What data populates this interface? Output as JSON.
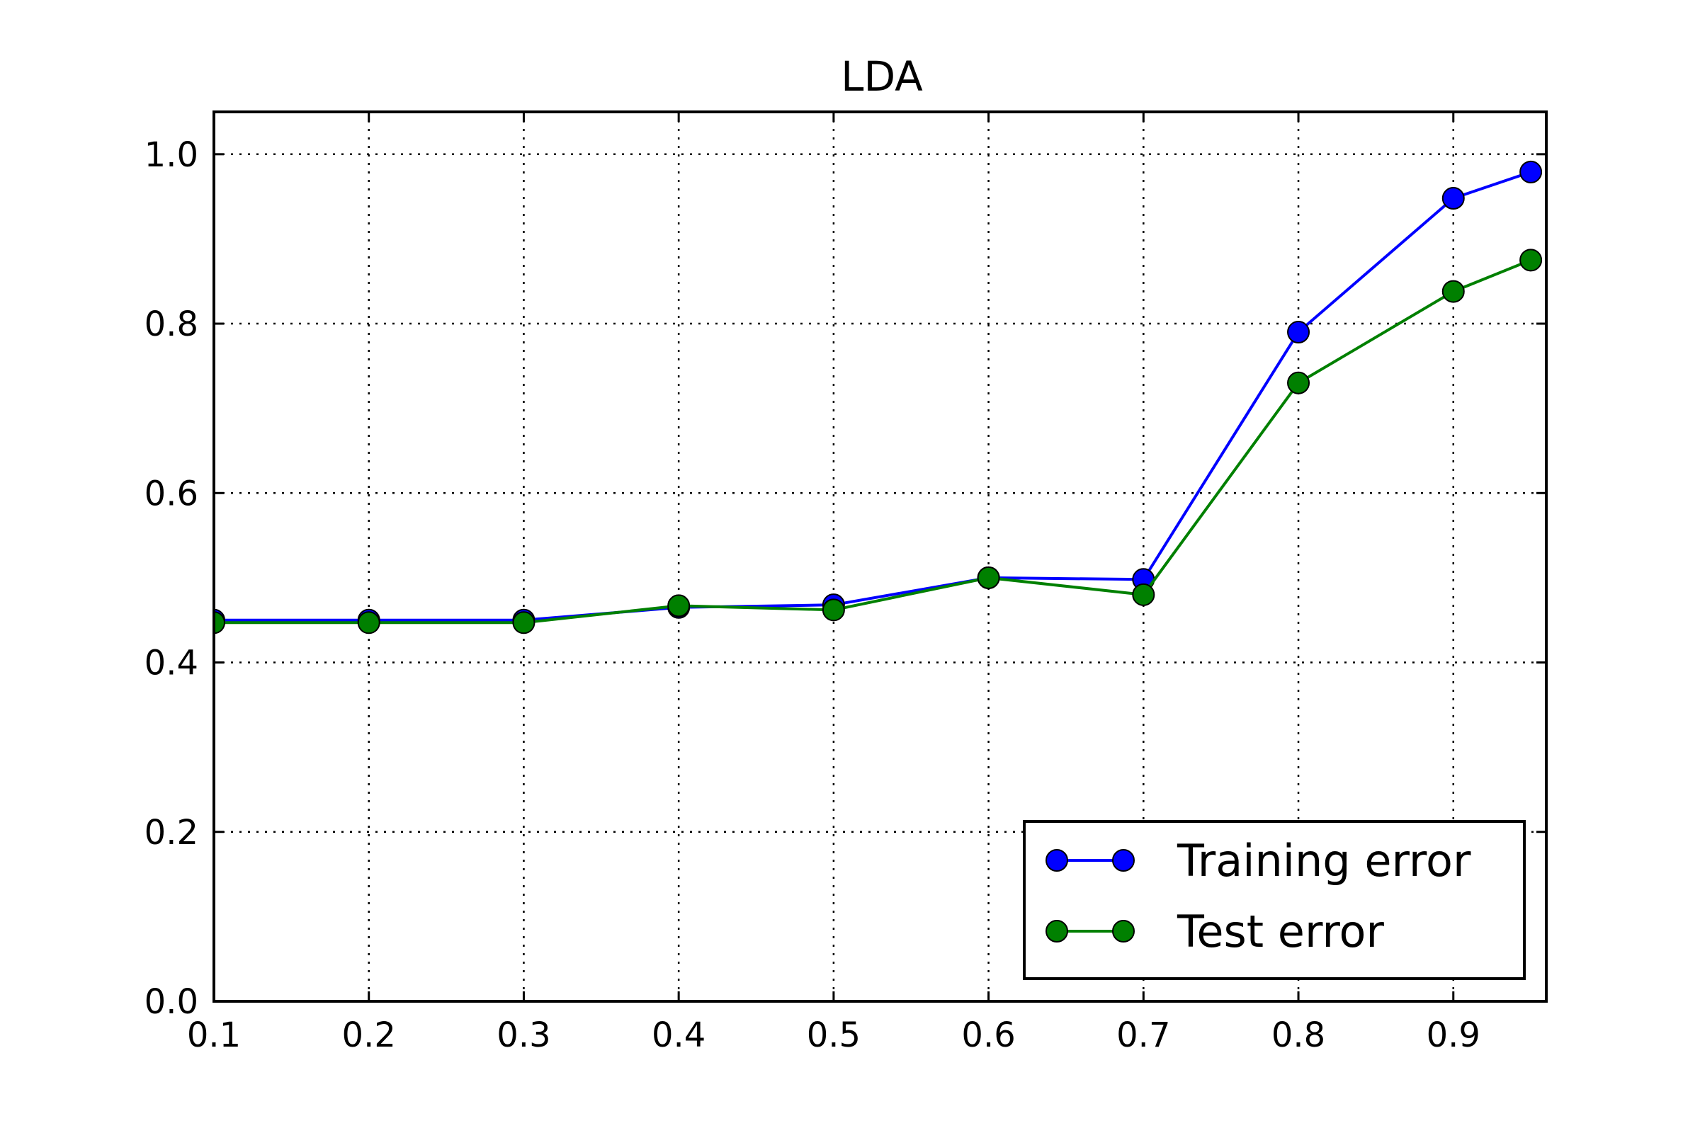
{
  "chart_data": {
    "type": "line",
    "title": "LDA",
    "xlabel": "",
    "ylabel": "",
    "xlim": [
      0.1,
      0.96
    ],
    "ylim": [
      0.0,
      1.05
    ],
    "x_ticks": [
      0.1,
      0.2,
      0.3,
      0.4,
      0.5,
      0.6,
      0.7,
      0.8,
      0.9
    ],
    "x_tick_labels": [
      "0.1",
      "0.2",
      "0.3",
      "0.4",
      "0.5",
      "0.6",
      "0.7",
      "0.8",
      "0.9"
    ],
    "y_ticks": [
      0.0,
      0.2,
      0.4,
      0.6,
      0.8,
      1.0
    ],
    "y_tick_labels": [
      "0.0",
      "0.2",
      "0.4",
      "0.6",
      "0.8",
      "1.0"
    ],
    "grid": true,
    "legend_position": "bottom-right",
    "x": [
      0.1,
      0.2,
      0.3,
      0.4,
      0.5,
      0.6,
      0.7,
      0.8,
      0.9,
      0.95
    ],
    "series": [
      {
        "name": "Training error",
        "color": "#0000ff",
        "values": [
          0.45,
          0.45,
          0.45,
          0.465,
          0.468,
          0.5,
          0.498,
          0.79,
          0.948,
          0.979
        ]
      },
      {
        "name": "Test error",
        "color": "#008000",
        "values": [
          0.447,
          0.447,
          0.447,
          0.467,
          0.462,
          0.5,
          0.48,
          0.73,
          0.838,
          0.875
        ]
      }
    ]
  }
}
